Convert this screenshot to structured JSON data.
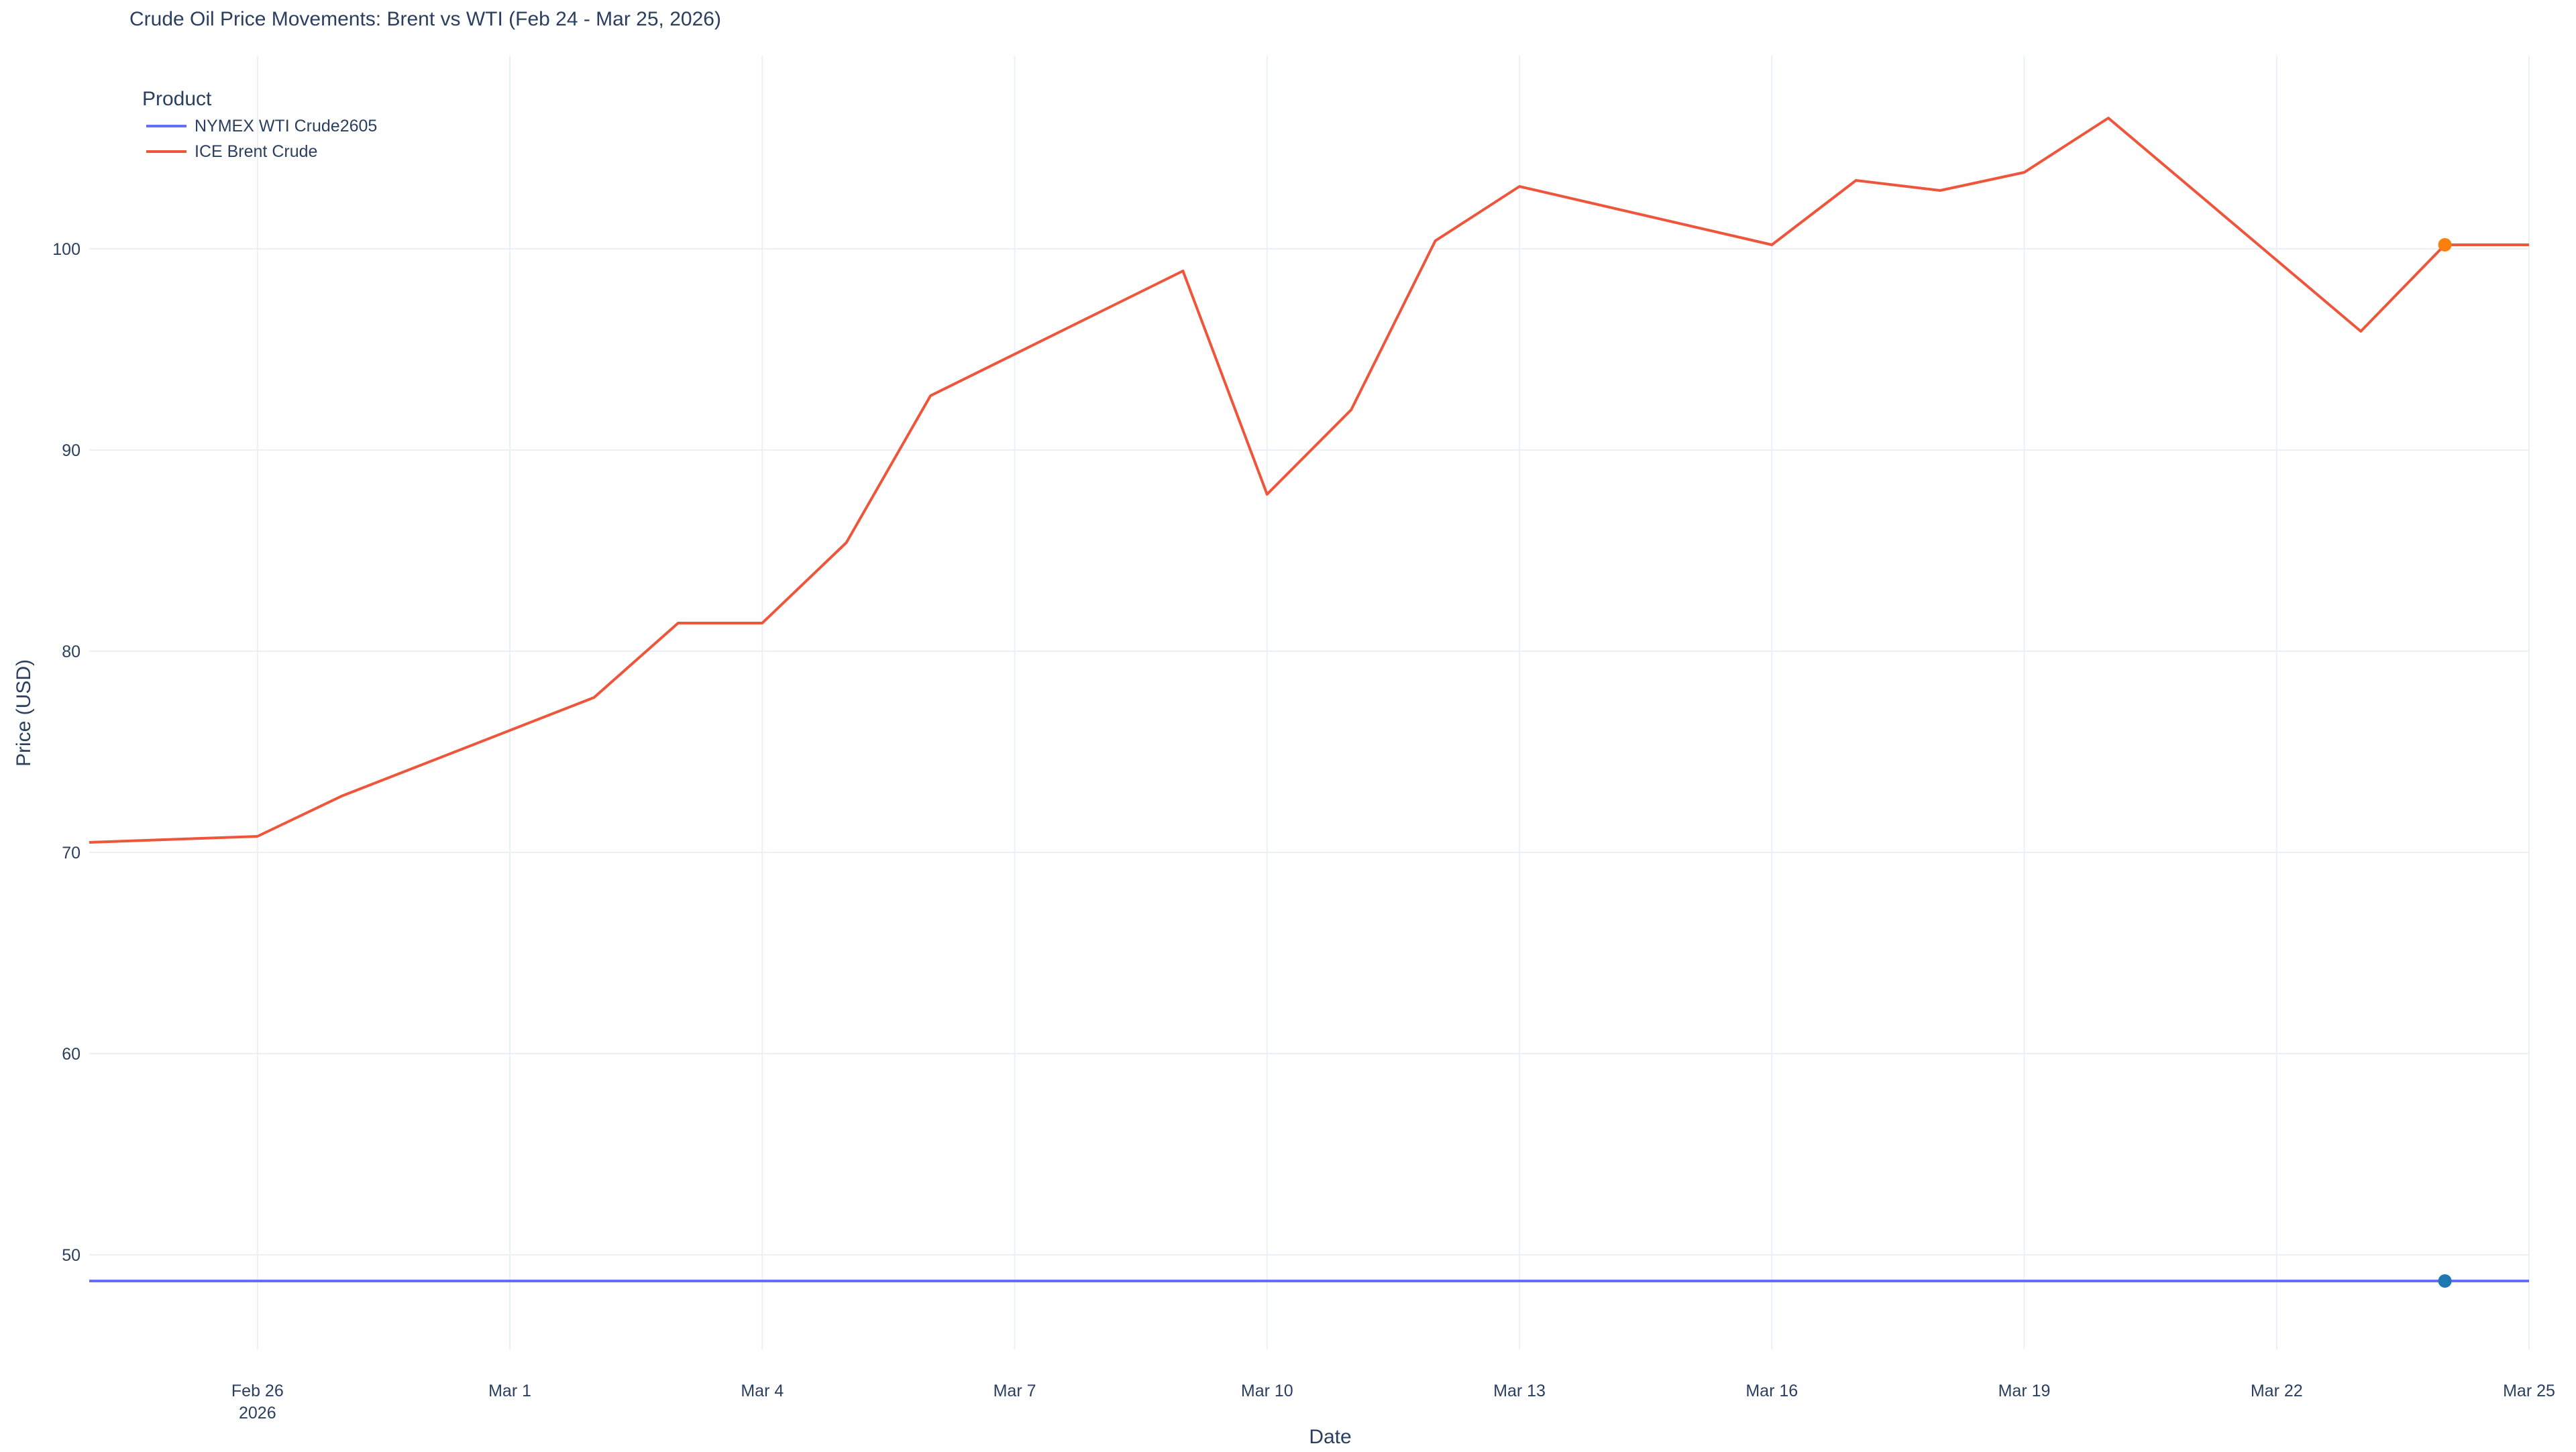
{
  "chart_data": {
    "type": "line",
    "title": "Crude Oil Price Movements: Brent vs WTI (Feb 24 - Mar 25, 2026)",
    "xlabel": "Date",
    "ylabel": "Price (USD)",
    "legend_title": "Product",
    "legend_position": "top-left",
    "grid": true,
    "xlim": [
      "2026-02-24",
      "2026-03-25"
    ],
    "ylim": [
      45.3,
      109.6
    ],
    "x_ticks": [
      {
        "date": "2026-02-26",
        "label": "Feb 26",
        "sublabel": "2026"
      },
      {
        "date": "2026-03-01",
        "label": "Mar 1"
      },
      {
        "date": "2026-03-04",
        "label": "Mar 4"
      },
      {
        "date": "2026-03-07",
        "label": "Mar 7"
      },
      {
        "date": "2026-03-10",
        "label": "Mar 10"
      },
      {
        "date": "2026-03-13",
        "label": "Mar 13"
      },
      {
        "date": "2026-03-16",
        "label": "Mar 16"
      },
      {
        "date": "2026-03-19",
        "label": "Mar 19"
      },
      {
        "date": "2026-03-22",
        "label": "Mar 22"
      },
      {
        "date": "2026-03-25",
        "label": "Mar 25"
      }
    ],
    "y_ticks": [
      {
        "value": 50,
        "label": "50"
      },
      {
        "value": 60,
        "label": "60"
      },
      {
        "value": 70,
        "label": "70"
      },
      {
        "value": 80,
        "label": "80"
      },
      {
        "value": 90,
        "label": "90"
      },
      {
        "value": 100,
        "label": "100"
      }
    ],
    "series": [
      {
        "name": "NYMEX WTI Crude2605",
        "color": "#636efa",
        "points": [
          {
            "x": "2026-02-24",
            "y": 48.7
          },
          {
            "x": "2026-03-25",
            "y": 48.7
          }
        ],
        "marker": {
          "x": "2026-03-24",
          "y": 48.7,
          "color": "#1f77b4"
        }
      },
      {
        "name": "ICE Brent Crude",
        "color": "#ef553b",
        "points": [
          {
            "x": "2026-02-24",
            "y": 70.5
          },
          {
            "x": "2026-02-26",
            "y": 70.8
          },
          {
            "x": "2026-02-27",
            "y": 72.8
          },
          {
            "x": "2026-03-02",
            "y": 77.7
          },
          {
            "x": "2026-03-03",
            "y": 81.4
          },
          {
            "x": "2026-03-04",
            "y": 81.4
          },
          {
            "x": "2026-03-05",
            "y": 85.4
          },
          {
            "x": "2026-03-06",
            "y": 92.7
          },
          {
            "x": "2026-03-09",
            "y": 98.9
          },
          {
            "x": "2026-03-10",
            "y": 87.8
          },
          {
            "x": "2026-03-11",
            "y": 92.0
          },
          {
            "x": "2026-03-12",
            "y": 100.4
          },
          {
            "x": "2026-03-13",
            "y": 103.1
          },
          {
            "x": "2026-03-16",
            "y": 100.2
          },
          {
            "x": "2026-03-17",
            "y": 103.4
          },
          {
            "x": "2026-03-18",
            "y": 102.9
          },
          {
            "x": "2026-03-19",
            "y": 103.8
          },
          {
            "x": "2026-03-20",
            "y": 106.5
          },
          {
            "x": "2026-03-23",
            "y": 95.9
          },
          {
            "x": "2026-03-24",
            "y": 100.2
          },
          {
            "x": "2026-03-25",
            "y": 100.2
          }
        ],
        "marker": {
          "x": "2026-03-24",
          "y": 100.2,
          "color": "#ff7f0e"
        }
      }
    ]
  }
}
